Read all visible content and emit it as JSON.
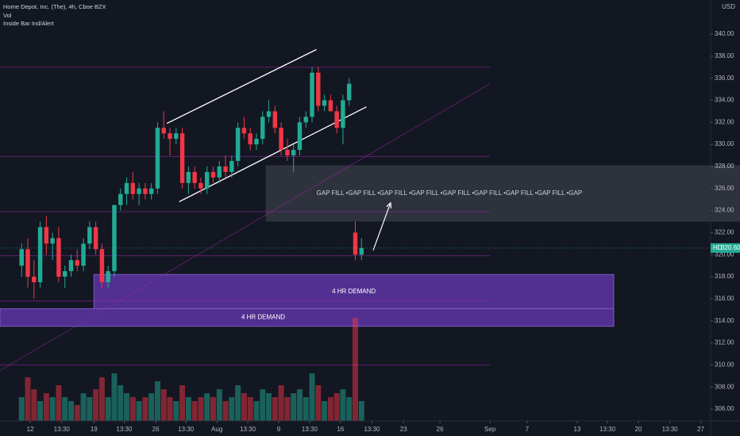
{
  "chart_data": {
    "type": "candlestick",
    "title": "Home Depot, Inc. (The), 4h, Cboe BZX",
    "indicators": [
      "Vol",
      "Inside Bar Ind/Alert"
    ],
    "currency": "USD",
    "up_color": "#22ab94",
    "down_color": "#f23645",
    "ylim": [
      305,
      343
    ],
    "yticks": [
      {
        "value": 306,
        "label": "306.00"
      },
      {
        "value": 308,
        "label": "308.00"
      },
      {
        "value": 310,
        "label": "310.00"
      },
      {
        "value": 312,
        "label": "312.00"
      },
      {
        "value": 314,
        "label": "314.00"
      },
      {
        "value": 316,
        "label": "316.00"
      },
      {
        "value": 318,
        "label": "318.00"
      },
      {
        "value": 320,
        "label": "320.00"
      },
      {
        "value": 322,
        "label": "322.00"
      },
      {
        "value": 324,
        "label": "324.00"
      },
      {
        "value": 326,
        "label": "326.00"
      },
      {
        "value": 328,
        "label": "328.00"
      },
      {
        "value": 330,
        "label": "330.00"
      },
      {
        "value": 332,
        "label": "332.00"
      },
      {
        "value": 334,
        "label": "334.00"
      },
      {
        "value": 336,
        "label": "336.00"
      },
      {
        "value": 338,
        "label": "338.00"
      },
      {
        "value": 340,
        "label": "340.00"
      }
    ],
    "xlim": [
      -3.5,
      111.5
    ],
    "xticks": [
      {
        "value": 1.4,
        "label": "12"
      },
      {
        "value": 6.5,
        "label": "13:30"
      },
      {
        "value": 11.7,
        "label": "19"
      },
      {
        "value": 16.6,
        "label": "13:30"
      },
      {
        "value": 21.7,
        "label": "26"
      },
      {
        "value": 26.6,
        "label": "13:30"
      },
      {
        "value": 31.6,
        "label": "Aug"
      },
      {
        "value": 36.6,
        "label": "13:30"
      },
      {
        "value": 41.6,
        "label": "9"
      },
      {
        "value": 46.6,
        "label": "13:30"
      },
      {
        "value": 51.6,
        "label": "16"
      },
      {
        "value": 56.7,
        "label": "13:30"
      },
      {
        "value": 61.8,
        "label": "23"
      },
      {
        "value": 67.7,
        "label": "26"
      },
      {
        "value": 75.8,
        "label": "Sep"
      },
      {
        "value": 81.8,
        "label": "7"
      },
      {
        "value": 89.9,
        "label": "13"
      },
      {
        "value": 94.8,
        "label": "13:30"
      },
      {
        "value": 99.8,
        "label": "20"
      },
      {
        "value": 104.9,
        "label": "13:30"
      },
      {
        "value": 109.9,
        "label": "27"
      }
    ],
    "candles": [
      [
        319,
        321,
        318,
        320.5
      ],
      [
        320.5,
        321.5,
        317,
        318
      ],
      [
        318,
        319.5,
        316,
        317.5
      ],
      [
        317.5,
        323,
        317,
        322.5
      ],
      [
        322.5,
        323.5,
        320,
        321
      ],
      [
        321,
        322,
        319.5,
        321.5
      ],
      [
        321.5,
        322.5,
        317.5,
        318
      ],
      [
        318,
        319,
        317,
        318.5
      ],
      [
        318.5,
        320,
        318,
        319.5
      ],
      [
        319.5,
        320.5,
        318.5,
        319
      ],
      [
        319,
        321.5,
        318.5,
        321
      ],
      [
        321,
        323,
        320.5,
        322.5
      ],
      [
        322.5,
        323,
        320,
        320.5
      ],
      [
        320.5,
        321,
        317,
        317.5
      ],
      [
        317.5,
        319,
        317,
        318.5
      ],
      [
        318.5,
        324.5,
        318,
        324.5
      ],
      [
        324.5,
        326,
        324,
        325.5
      ],
      [
        325.5,
        327,
        324.5,
        326.5
      ],
      [
        326.5,
        327.5,
        325,
        325.5
      ],
      [
        325.5,
        326.5,
        324.5,
        326
      ],
      [
        326,
        326.5,
        325,
        325.5
      ],
      [
        325.5,
        326.5,
        325,
        326
      ],
      [
        326,
        332,
        325.5,
        331.5
      ],
      [
        331.5,
        333,
        330.5,
        331
      ],
      [
        331,
        331.5,
        329,
        330.5
      ],
      [
        330.5,
        331.5,
        330,
        331
      ],
      [
        331,
        331.5,
        326,
        326.5
      ],
      [
        326.5,
        328,
        325.5,
        327.5
      ],
      [
        327.5,
        328,
        326,
        326.5
      ],
      [
        326.5,
        327,
        325.5,
        326
      ],
      [
        326,
        328,
        325.5,
        327.5
      ],
      [
        327.5,
        328,
        326.5,
        327
      ],
      [
        327,
        328.5,
        326.5,
        328
      ],
      [
        328,
        329,
        327,
        327.5
      ],
      [
        327.5,
        329,
        327,
        328.5
      ],
      [
        328.5,
        332,
        328,
        331.5
      ],
      [
        331.5,
        332.5,
        330.5,
        331
      ],
      [
        331,
        331.5,
        329.5,
        330
      ],
      [
        330,
        331,
        329.5,
        330.5
      ],
      [
        330.5,
        333,
        330,
        332.5
      ],
      [
        332.5,
        334,
        332,
        333
      ],
      [
        333,
        333.5,
        331,
        331.5
      ],
      [
        331.5,
        332,
        329,
        329.5
      ],
      [
        329.5,
        330.5,
        328.5,
        329
      ],
      [
        329,
        330,
        327.5,
        329.5
      ],
      [
        329.5,
        332.5,
        329,
        332
      ],
      [
        332,
        333,
        331.5,
        332.5
      ],
      [
        332.5,
        337,
        332,
        336.5
      ],
      [
        336.5,
        337,
        333,
        333.5
      ],
      [
        333.5,
        334.5,
        333,
        334
      ],
      [
        334,
        334.5,
        333,
        333
      ],
      [
        333,
        333.5,
        331,
        331.5
      ],
      [
        331.5,
        334.5,
        330,
        334
      ],
      [
        334,
        336,
        333.5,
        335.5
      ],
      [
        322,
        323,
        319.5,
        320
      ],
      [
        320,
        321.5,
        319.5,
        320.6
      ]
    ],
    "volume": [
      30,
      55,
      40,
      25,
      35,
      30,
      45,
      30,
      25,
      20,
      35,
      30,
      40,
      55,
      30,
      60,
      45,
      35,
      30,
      25,
      30,
      35,
      50,
      40,
      30,
      25,
      45,
      30,
      25,
      30,
      35,
      30,
      40,
      25,
      30,
      45,
      35,
      30,
      25,
      40,
      35,
      30,
      45,
      30,
      35,
      40,
      30,
      60,
      45,
      25,
      30,
      35,
      40,
      30,
      130,
      25
    ],
    "volume_lim": [
      0,
      140
    ],
    "levels": [
      337,
      328.9,
      323.9,
      319.9,
      315.8,
      310
    ],
    "zones": [
      {
        "label": "GAP FILL •GAP FILL •GAP FILL •GAP FILL •GAP FILL •GAP FILL  •GAP FILL •GAP FILL •GAP",
        "range": [
          323,
          328.1
        ],
        "start": 39.5
      },
      {
        "label": "4 HR DEMAND",
        "range": [
          315.1,
          318.2
        ],
        "start": 11.7
      },
      {
        "label": "4 HR DEMAND",
        "range": [
          313.5,
          315.1
        ],
        "start": -3.5
      }
    ],
    "trend_lines": [
      {
        "from": [
          23.5,
          331.9
        ],
        "to": [
          47.7,
          338.6
        ]
      },
      {
        "from": [
          25.5,
          324.8
        ],
        "to": [
          55.8,
          333.4
        ]
      },
      {
        "from": [
          -3.5,
          309.5
        ],
        "to": [
          75.8,
          335.5
        ]
      }
    ],
    "arrow": {
      "from": [
        56.9,
        320.4
      ],
      "to": [
        59.7,
        324.7
      ]
    },
    "symbol": "HD",
    "last_price": {
      "value": 320.6,
      "label": "320.60"
    }
  }
}
